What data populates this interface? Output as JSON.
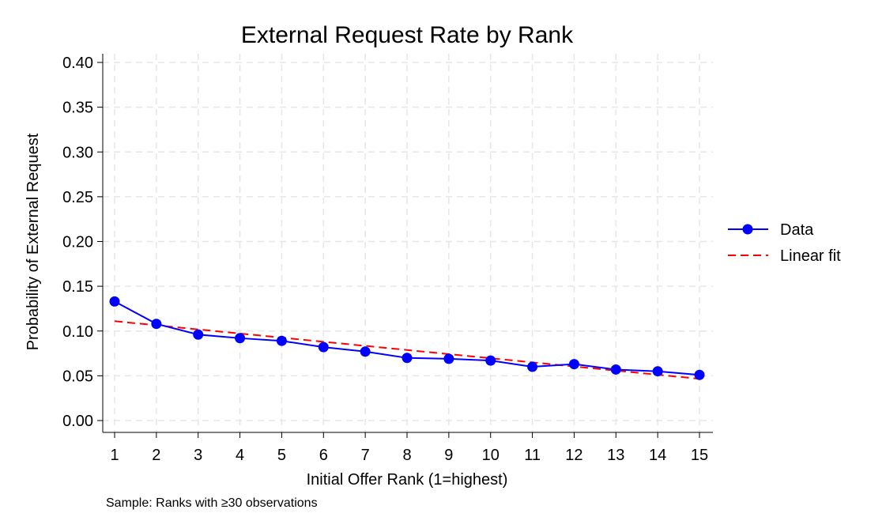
{
  "chart_data": {
    "type": "line",
    "title": "External Request Rate by Rank",
    "xlabel": "Initial Offer Rank (1=highest)",
    "ylabel": "Probability of External Request",
    "note": "Sample: Ranks with ≥30 observations",
    "x": [
      1,
      2,
      3,
      4,
      5,
      6,
      7,
      8,
      9,
      10,
      11,
      12,
      13,
      14,
      15
    ],
    "xlim": [
      1,
      15
    ],
    "ylim": [
      0,
      0.4
    ],
    "yticks": [
      "0.00",
      "0.05",
      "0.10",
      "0.15",
      "0.20",
      "0.25",
      "0.30",
      "0.35",
      "0.40"
    ],
    "xticks": [
      "1",
      "2",
      "3",
      "4",
      "5",
      "6",
      "7",
      "8",
      "9",
      "10",
      "11",
      "12",
      "13",
      "14",
      "15"
    ],
    "grid": true,
    "legend_position": "right",
    "series": [
      {
        "name": "Data",
        "style": "line-markers",
        "color": "#0000ff",
        "values": [
          0.133,
          0.108,
          0.096,
          0.092,
          0.089,
          0.082,
          0.077,
          0.07,
          0.069,
          0.067,
          0.06,
          0.063,
          0.057,
          0.055,
          0.051
        ]
      },
      {
        "name": "Linear fit",
        "style": "dashed",
        "color": "#ff0000",
        "values": [
          0.111,
          0.1064,
          0.1018,
          0.0972,
          0.0926,
          0.088,
          0.0834,
          0.0788,
          0.0742,
          0.0696,
          0.065,
          0.0604,
          0.0558,
          0.0512,
          0.0466
        ]
      }
    ]
  }
}
